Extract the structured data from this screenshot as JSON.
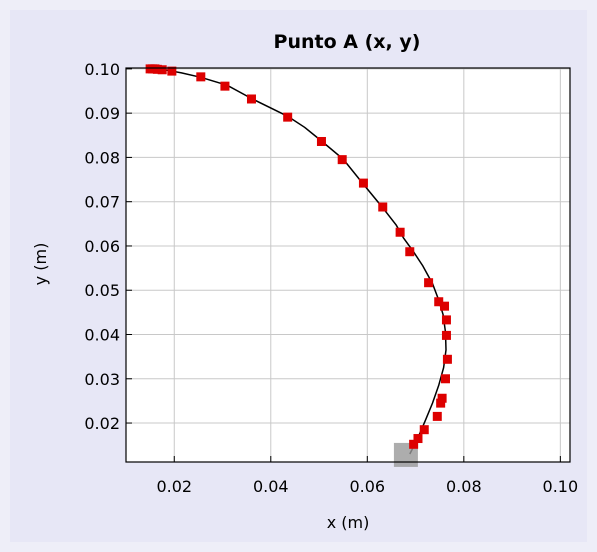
{
  "chart_data": {
    "type": "scatter",
    "title": "Punto A (x, y)",
    "xlabel": "x (m)",
    "ylabel": "y (m)",
    "xlim": [
      0.01,
      0.102
    ],
    "ylim": [
      0.0112,
      0.1002
    ],
    "xticks": [
      "0.02",
      "0.04",
      "0.06",
      "0.08",
      "0.10"
    ],
    "yticks": [
      "0.02",
      "0.03",
      "0.04",
      "0.05",
      "0.06",
      "0.07",
      "0.08",
      "0.09",
      "0.10"
    ],
    "grid": true,
    "curve": {
      "color": "#000000",
      "x": [
        0.015,
        0.0165,
        0.0185,
        0.0215,
        0.0255,
        0.031,
        0.036,
        0.0435,
        0.047,
        0.0505,
        0.055,
        0.059,
        0.063,
        0.066,
        0.0675,
        0.0695,
        0.0715,
        0.0735,
        0.0748,
        0.0757,
        0.0762,
        0.0763,
        0.0758,
        0.0748,
        0.0735,
        0.072,
        0.0703,
        0.0688
      ],
      "y": [
        0.1,
        0.09995,
        0.0997,
        0.0991,
        0.0981,
        0.0963,
        0.0933,
        0.0893,
        0.0868,
        0.0837,
        0.0796,
        0.0742,
        0.0689,
        0.0647,
        0.0618,
        0.0588,
        0.0555,
        0.0515,
        0.0478,
        0.0445,
        0.0405,
        0.0365,
        0.0325,
        0.0285,
        0.0245,
        0.0205,
        0.0162,
        0.013
      ]
    },
    "series": [
      {
        "color": "#dd0000",
        "x": [
          0.015,
          0.0155,
          0.016,
          0.0165,
          0.0175,
          0.0195,
          0.0255,
          0.0305,
          0.036,
          0.0435,
          0.0505,
          0.0548,
          0.0592,
          0.0632,
          0.0668,
          0.0688,
          0.0727,
          0.0748,
          0.076,
          0.0764,
          0.0764,
          0.0766,
          0.0762,
          0.0755,
          0.0752,
          0.0745,
          0.0718,
          0.0705,
          0.0696
        ],
        "y": [
          0.1,
          0.1,
          0.1,
          0.0999,
          0.0998,
          0.0995,
          0.0982,
          0.0961,
          0.0932,
          0.0891,
          0.0836,
          0.0795,
          0.0742,
          0.0688,
          0.0631,
          0.0587,
          0.0517,
          0.0474,
          0.0464,
          0.0433,
          0.0398,
          0.0344,
          0.03,
          0.0256,
          0.0245,
          0.0215,
          0.0185,
          0.0165,
          0.0152
        ]
      }
    ],
    "highlight": {
      "x": 0.068,
      "y": 0.0128,
      "color": "#999999"
    }
  }
}
